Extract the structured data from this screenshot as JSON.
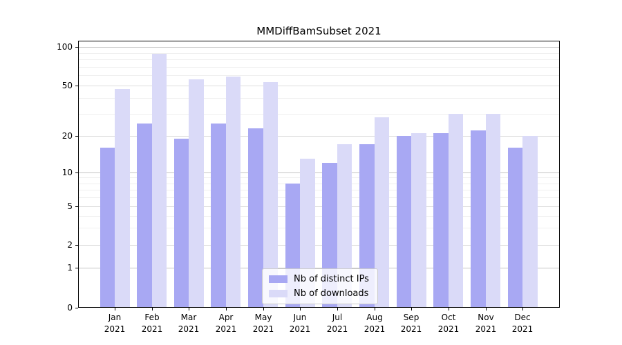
{
  "title": "MMDiffBamSubset 2021",
  "legend": {
    "items": [
      {
        "label": "Nb of distinct IPs"
      },
      {
        "label": "Nb of downloads"
      }
    ]
  },
  "colors": {
    "distinct_ips": "#a8a8f3",
    "downloads": "#dadaf8",
    "grid_decade": "#c3c3c3",
    "grid_major": "#dcdcdc",
    "grid_minor": "#efefef"
  },
  "y_axis": {
    "tick_labels": [
      "0",
      "1",
      "2",
      "5",
      "10",
      "20",
      "50",
      "100"
    ]
  },
  "x_axis": {
    "month_labels": [
      "Jan",
      "Feb",
      "Mar",
      "Apr",
      "May",
      "Jun",
      "Jul",
      "Aug",
      "Sep",
      "Oct",
      "Nov",
      "Dec"
    ],
    "year_label": "2021"
  },
  "chart_data": {
    "type": "bar",
    "title": "MMDiffBamSubset 2021",
    "categories": [
      "Jan 2021",
      "Feb 2021",
      "Mar 2021",
      "Apr 2021",
      "May 2021",
      "Jun 2021",
      "Jul 2021",
      "Aug 2021",
      "Sep 2021",
      "Oct 2021",
      "Nov 2021",
      "Dec 2021"
    ],
    "series": [
      {
        "name": "Nb of distinct IPs",
        "color": "#a8a8f3",
        "values": [
          16,
          25,
          19,
          25,
          23,
          8,
          12,
          17,
          20,
          21,
          22,
          16
        ]
      },
      {
        "name": "Nb of downloads",
        "color": "#dadaf8",
        "values": [
          47,
          88,
          56,
          59,
          53,
          13,
          17,
          28,
          21,
          30,
          30,
          20
        ]
      }
    ],
    "xlabel": "",
    "ylabel": "",
    "y_scale": "symlog",
    "yticks": [
      0,
      1,
      2,
      5,
      10,
      20,
      50,
      100
    ],
    "ylim": [
      0,
      100
    ],
    "grid": "both-horizontal",
    "legend_position": "lower center"
  }
}
